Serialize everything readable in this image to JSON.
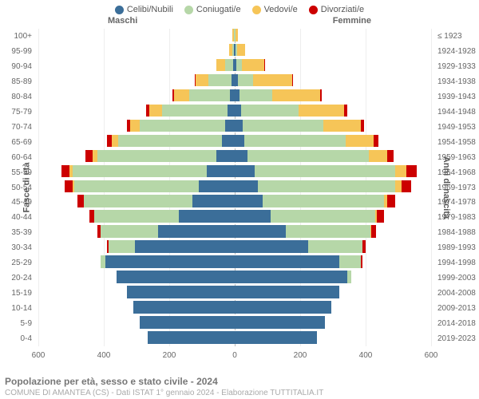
{
  "legend": [
    {
      "label": "Celibi/Nubili",
      "color": "#3b6e99"
    },
    {
      "label": "Coniugati/e",
      "color": "#b6d7a8"
    },
    {
      "label": "Vedovi/e",
      "color": "#f6c558"
    },
    {
      "label": "Divorziati/e",
      "color": "#cc0000"
    }
  ],
  "headers": {
    "male": "Maschi",
    "female": "Femmine"
  },
  "axis_left_title": "Fasce di età",
  "axis_right_title": "Anni di nascita",
  "age_labels": [
    "0-4",
    "5-9",
    "10-14",
    "15-19",
    "20-24",
    "25-29",
    "30-34",
    "35-39",
    "40-44",
    "45-49",
    "50-54",
    "55-59",
    "60-64",
    "65-69",
    "70-74",
    "75-79",
    "80-84",
    "85-89",
    "90-94",
    "95-99",
    "100+"
  ],
  "birth_labels": [
    "2019-2023",
    "2014-2018",
    "2009-2013",
    "2004-2008",
    "1999-2003",
    "1994-1998",
    "1989-1993",
    "1984-1988",
    "1979-1983",
    "1974-1978",
    "1969-1973",
    "1964-1968",
    "1959-1963",
    "1954-1958",
    "1949-1953",
    "1944-1948",
    "1939-1943",
    "1934-1938",
    "1929-1933",
    "1924-1928",
    "≤ 1923"
  ],
  "x_ticks": [
    600,
    400,
    200,
    0,
    200,
    400,
    600
  ],
  "x_max": 600,
  "title": "Popolazione per età, sesso e stato civile - 2024",
  "subtitle": "COMUNE DI AMANTEA (CS) - Dati ISTAT 1° gennaio 2024 - Elaborazione TUTTITALIA.IT",
  "series_colors": {
    "single": "#3b6e99",
    "married": "#b6d7a8",
    "widowed": "#f6c558",
    "divorced": "#cc0000"
  },
  "background_color": "#ffffff",
  "grid_color": "#eeeeee",
  "centerline_color": "#bbbbbb",
  "data": {
    "male": [
      {
        "single": 265,
        "married": 0,
        "widowed": 0,
        "divorced": 0
      },
      {
        "single": 290,
        "married": 0,
        "widowed": 0,
        "divorced": 0
      },
      {
        "single": 310,
        "married": 0,
        "widowed": 0,
        "divorced": 0
      },
      {
        "single": 330,
        "married": 0,
        "widowed": 0,
        "divorced": 0
      },
      {
        "single": 360,
        "married": 0,
        "widowed": 0,
        "divorced": 0
      },
      {
        "single": 395,
        "married": 15,
        "widowed": 0,
        "divorced": 0
      },
      {
        "single": 305,
        "married": 80,
        "widowed": 0,
        "divorced": 5
      },
      {
        "single": 235,
        "married": 175,
        "widowed": 0,
        "divorced": 10
      },
      {
        "single": 170,
        "married": 260,
        "widowed": 0,
        "divorced": 15
      },
      {
        "single": 130,
        "married": 330,
        "widowed": 0,
        "divorced": 20
      },
      {
        "single": 110,
        "married": 380,
        "widowed": 5,
        "divorced": 25
      },
      {
        "single": 85,
        "married": 410,
        "widowed": 10,
        "divorced": 25
      },
      {
        "single": 55,
        "married": 365,
        "widowed": 15,
        "divorced": 20
      },
      {
        "single": 40,
        "married": 315,
        "widowed": 20,
        "divorced": 15
      },
      {
        "single": 30,
        "married": 260,
        "widowed": 30,
        "divorced": 10
      },
      {
        "single": 22,
        "married": 200,
        "widowed": 40,
        "divorced": 8
      },
      {
        "single": 15,
        "married": 125,
        "widowed": 45,
        "divorced": 5
      },
      {
        "single": 10,
        "married": 70,
        "widowed": 40,
        "divorced": 3
      },
      {
        "single": 5,
        "married": 25,
        "widowed": 25,
        "divorced": 2
      },
      {
        "single": 2,
        "married": 6,
        "widowed": 10,
        "divorced": 0
      },
      {
        "single": 1,
        "married": 2,
        "widowed": 4,
        "divorced": 0
      }
    ],
    "female": [
      {
        "single": 250,
        "married": 0,
        "widowed": 0,
        "divorced": 0
      },
      {
        "single": 275,
        "married": 0,
        "widowed": 0,
        "divorced": 0
      },
      {
        "single": 295,
        "married": 0,
        "widowed": 0,
        "divorced": 0
      },
      {
        "single": 320,
        "married": 0,
        "widowed": 0,
        "divorced": 0
      },
      {
        "single": 345,
        "married": 10,
        "widowed": 0,
        "divorced": 0
      },
      {
        "single": 320,
        "married": 65,
        "widowed": 0,
        "divorced": 5
      },
      {
        "single": 225,
        "married": 165,
        "widowed": 0,
        "divorced": 10
      },
      {
        "single": 155,
        "married": 260,
        "widowed": 2,
        "divorced": 15
      },
      {
        "single": 110,
        "married": 320,
        "widowed": 5,
        "divorced": 20
      },
      {
        "single": 85,
        "married": 370,
        "widowed": 10,
        "divorced": 25
      },
      {
        "single": 70,
        "married": 420,
        "widowed": 20,
        "divorced": 30
      },
      {
        "single": 60,
        "married": 430,
        "widowed": 35,
        "divorced": 30
      },
      {
        "single": 40,
        "married": 370,
        "widowed": 55,
        "divorced": 20
      },
      {
        "single": 30,
        "married": 310,
        "widowed": 85,
        "divorced": 15
      },
      {
        "single": 25,
        "married": 245,
        "widowed": 115,
        "divorced": 10
      },
      {
        "single": 20,
        "married": 175,
        "widowed": 140,
        "divorced": 8
      },
      {
        "single": 15,
        "married": 100,
        "widowed": 145,
        "divorced": 5
      },
      {
        "single": 10,
        "married": 45,
        "widowed": 120,
        "divorced": 3
      },
      {
        "single": 6,
        "married": 15,
        "widowed": 70,
        "divorced": 2
      },
      {
        "single": 3,
        "married": 4,
        "widowed": 25,
        "divorced": 0
      },
      {
        "single": 1,
        "married": 1,
        "widowed": 8,
        "divorced": 0
      }
    ]
  }
}
